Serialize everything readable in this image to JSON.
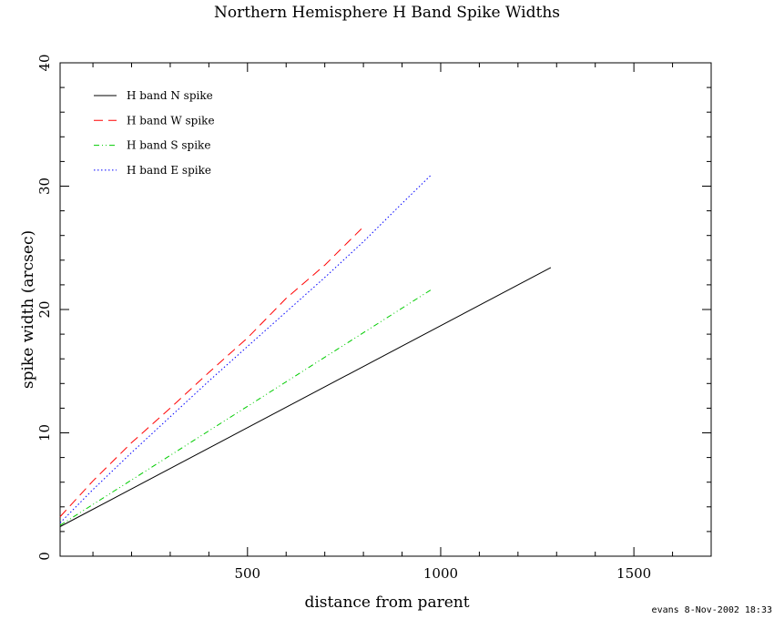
{
  "chart_data": {
    "type": "line",
    "title": "Northern Hemisphere H Band Spike Widths",
    "xlabel": "distance from parent",
    "ylabel": "spike width (arcsec)",
    "xlim": [
      15,
      1700
    ],
    "ylim": [
      0,
      40
    ],
    "xticks": [
      500,
      1000,
      1500
    ],
    "yticks": [
      0,
      10,
      20,
      30,
      40
    ],
    "grid": false,
    "legend_position": "top-left",
    "series": [
      {
        "name": "H band N spike",
        "color": "#000000",
        "dash": "solid",
        "x": [
          15,
          1285
        ],
        "y": [
          2.4,
          23.4
        ]
      },
      {
        "name": "H band W spike",
        "color": "#ff0000",
        "dash": "dashed",
        "x": [
          15,
          100,
          200,
          300,
          400,
          500,
          600,
          700,
          800
        ],
        "y": [
          3.2,
          6.1,
          9.2,
          12.0,
          14.9,
          17.7,
          20.9,
          23.6,
          26.7
        ]
      },
      {
        "name": "H band S spike",
        "color": "#00cc00",
        "dash": "dashdotdot",
        "x": [
          15,
          975
        ],
        "y": [
          2.5,
          21.6
        ]
      },
      {
        "name": "H band E spike",
        "color": "#0000ff",
        "dash": "dotted",
        "x": [
          15,
          100,
          200,
          300,
          400,
          500,
          600,
          700,
          800,
          900,
          975
        ],
        "y": [
          2.7,
          5.4,
          8.4,
          11.3,
          14.2,
          17.0,
          19.8,
          22.6,
          25.5,
          28.6,
          30.9
        ]
      }
    ],
    "annotation": "evans  8-Nov-2002 18:33"
  }
}
